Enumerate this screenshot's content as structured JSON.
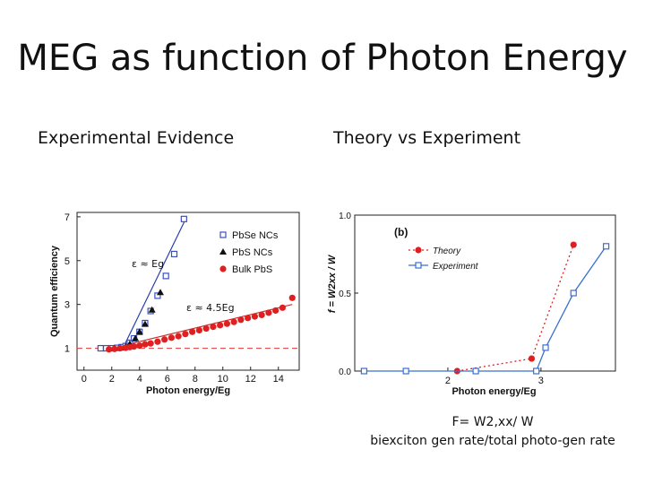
{
  "slide": {
    "title": "MEG as function of Photon Energy",
    "left_heading": "Experimental Evidence",
    "right_heading": "Theory vs Experiment",
    "caption_line1": "F=  W2,xx/ W",
    "caption_line2": "biexciton gen rate/total  photo-gen rate"
  },
  "chart_data": [
    {
      "type": "scatter",
      "xlabel": "Photon energy/Eg",
      "ylabel": "Quantum efficiency",
      "xlim": [
        -0.5,
        15.5
      ],
      "ylim": [
        0,
        7.2
      ],
      "xticks": [
        0,
        2,
        4,
        6,
        8,
        10,
        12,
        14
      ],
      "yticks": [
        1,
        3,
        5,
        7
      ],
      "legend_position": "top-right",
      "annotations": [
        {
          "text": "ε ≈ Eg",
          "x": 4.6,
          "y": 4.7
        },
        {
          "text": "ε ≈ 4.5Eg",
          "x": 9.1,
          "y": 2.7
        }
      ],
      "baseline": {
        "y": 1,
        "style": "dashed",
        "color": "#e05050"
      },
      "series": [
        {
          "name": "PbSe NCs",
          "marker": "square-open",
          "color": "#3a4fc4",
          "x": [
            1.2,
            1.6,
            2.0,
            2.4,
            2.7,
            3.0,
            3.3,
            3.6,
            4.0,
            4.4,
            4.8,
            5.3,
            5.9,
            6.5,
            7.2
          ],
          "y": [
            1.0,
            1.0,
            1.0,
            1.02,
            1.05,
            1.1,
            1.25,
            1.45,
            1.75,
            2.15,
            2.7,
            3.4,
            4.3,
            5.3,
            6.9
          ]
        },
        {
          "name": "PbS NCs",
          "marker": "triangle",
          "color": "#111111",
          "x": [
            2.2,
            2.6,
            3.0,
            3.3,
            3.7,
            4.0,
            4.4,
            4.9,
            5.5
          ],
          "y": [
            1.0,
            1.02,
            1.08,
            1.2,
            1.45,
            1.75,
            2.1,
            2.75,
            3.55
          ]
        },
        {
          "name": "Bulk PbS",
          "marker": "circle",
          "color": "#e02020",
          "x": [
            1.8,
            2.2,
            2.6,
            3.0,
            3.3,
            3.6,
            4.0,
            4.4,
            4.8,
            5.3,
            5.8,
            6.3,
            6.8,
            7.3,
            7.8,
            8.3,
            8.8,
            9.3,
            9.8,
            10.3,
            10.8,
            11.3,
            11.8,
            12.3,
            12.8,
            13.3,
            13.8,
            14.3,
            15.0
          ],
          "y": [
            0.95,
            0.97,
            1.0,
            1.02,
            1.05,
            1.08,
            1.12,
            1.18,
            1.22,
            1.3,
            1.4,
            1.48,
            1.55,
            1.65,
            1.75,
            1.82,
            1.9,
            1.98,
            2.05,
            2.12,
            2.2,
            2.3,
            2.38,
            2.45,
            2.52,
            2.62,
            2.72,
            2.85,
            3.3
          ]
        }
      ],
      "fits": [
        {
          "color": "#2a3fb0",
          "x": [
            2.8,
            7.4
          ],
          "y": [
            1.0,
            7.0
          ]
        },
        {
          "color": "#c83030",
          "x": [
            1.5,
            15.0
          ],
          "y": [
            0.92,
            3.0
          ]
        }
      ]
    },
    {
      "type": "line",
      "panel_label": "(b)",
      "xlabel": "Photon energy/Eg",
      "ylabel": "f = W2xx / W",
      "xlim": [
        1.0,
        3.8
      ],
      "ylim": [
        0.0,
        1.0
      ],
      "xticks": [
        2,
        3
      ],
      "yticks": [
        0.0,
        0.5,
        1.0
      ],
      "ytick_labels": [
        "0.0",
        "0.5",
        "1.0"
      ],
      "legend_position": "top-left",
      "series": [
        {
          "name": "Theory",
          "marker": "circle",
          "line": "dotted",
          "color": "#e02020",
          "x": [
            2.1,
            2.9,
            3.35
          ],
          "y": [
            0.0,
            0.08,
            0.81
          ]
        },
        {
          "name": "Experiment",
          "marker": "square-open",
          "line": "solid",
          "color": "#3a6fd0",
          "x": [
            1.1,
            1.55,
            2.3,
            2.95,
            3.05,
            3.35,
            3.7
          ],
          "y": [
            0.0,
            0.0,
            0.0,
            0.0,
            0.15,
            0.5,
            0.8
          ]
        }
      ]
    }
  ]
}
